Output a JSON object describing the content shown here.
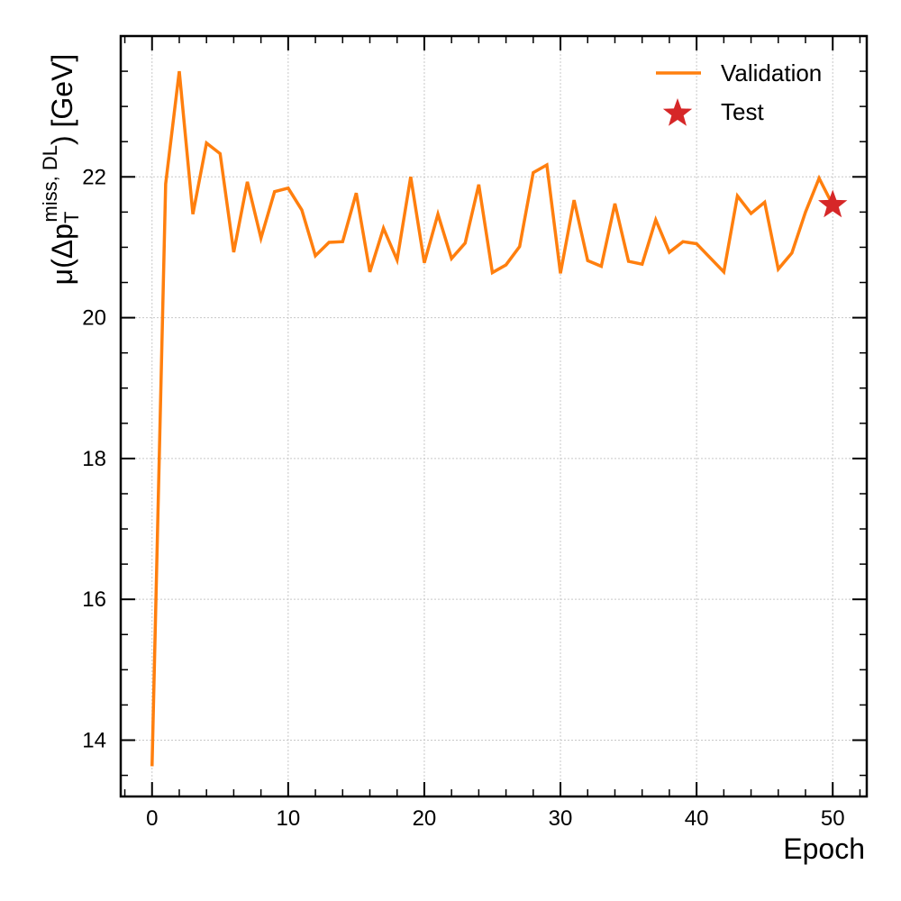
{
  "chart_data": {
    "type": "line",
    "xlabel": "Epoch",
    "ylabel": "μ(Δp_T^{miss, DL}) [GeV]",
    "ylabel_parts": {
      "pre": "μ(Δp",
      "sub": "T",
      "sup": "miss, DL",
      "post": ") [GeV]"
    },
    "xlim": [
      -2.3,
      52.5
    ],
    "ylim": [
      13.2,
      24.0
    ],
    "xticks": [
      0,
      10,
      20,
      30,
      40,
      50
    ],
    "yticks": [
      14,
      16,
      18,
      20,
      22
    ],
    "grid": true,
    "legend_position": "top-right",
    "series": [
      {
        "name": "Validation",
        "kind": "line",
        "color": "#ff7f0e",
        "x": [
          0,
          1,
          2,
          3,
          4,
          5,
          6,
          7,
          8,
          9,
          10,
          11,
          12,
          13,
          14,
          15,
          16,
          17,
          18,
          19,
          20,
          21,
          22,
          23,
          24,
          25,
          26,
          27,
          28,
          29,
          30,
          31,
          32,
          33,
          34,
          35,
          36,
          37,
          38,
          39,
          40,
          41,
          42,
          43,
          44,
          45,
          46,
          47,
          48,
          49,
          50
        ],
        "y": [
          13.63,
          21.9,
          23.5,
          21.47,
          22.48,
          22.33,
          20.93,
          21.93,
          21.13,
          21.79,
          21.84,
          21.53,
          20.88,
          21.07,
          21.08,
          21.77,
          20.65,
          21.27,
          20.82,
          22.0,
          20.78,
          21.47,
          20.84,
          21.06,
          21.89,
          20.64,
          20.75,
          21.01,
          22.06,
          22.17,
          20.63,
          21.67,
          20.81,
          20.73,
          21.62,
          20.8,
          20.76,
          21.39,
          20.93,
          21.08,
          21.05,
          20.85,
          20.65,
          21.73,
          21.48,
          21.64,
          20.69,
          20.92,
          21.5,
          21.98,
          21.6
        ]
      },
      {
        "name": "Test",
        "kind": "marker",
        "marker": "star",
        "color": "#d62728",
        "x": [
          50
        ],
        "y": [
          21.6
        ]
      }
    ]
  }
}
